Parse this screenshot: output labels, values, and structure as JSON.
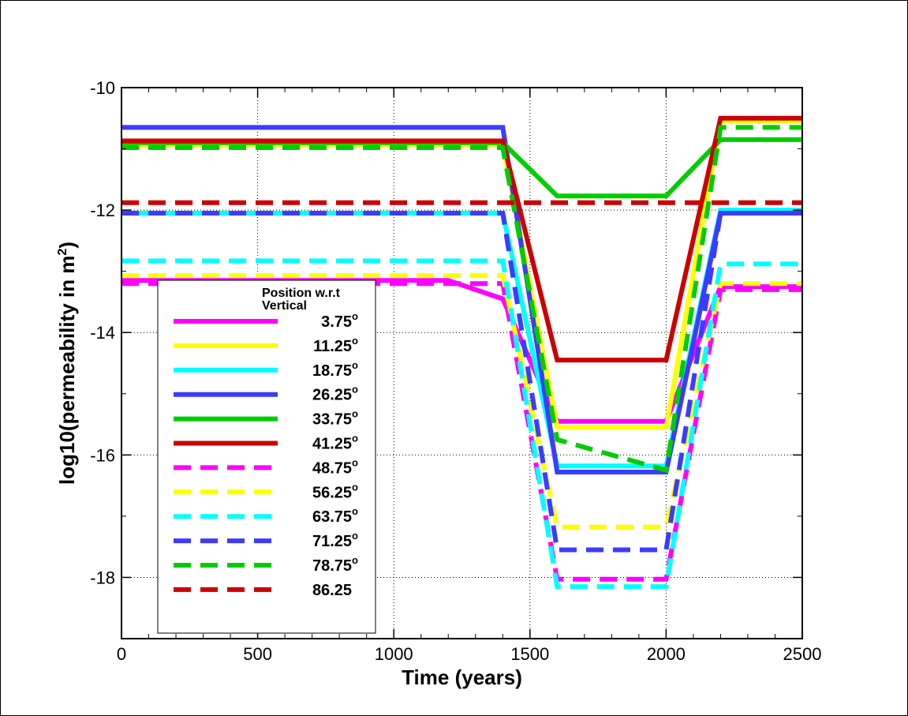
{
  "chart_data": {
    "type": "line",
    "xlabel": "Time (years)",
    "ylabel_main": "log10(permeability in m",
    "ylabel_sup": "2",
    "ylabel_close": ")",
    "xlim": [
      0,
      2500
    ],
    "ylim": [
      -19,
      -10
    ],
    "xticks": [
      0,
      500,
      1000,
      1500,
      2000,
      2500
    ],
    "xtick_labels": [
      "0",
      "500",
      "1000",
      "1500",
      "2000",
      "2500"
    ],
    "yticks": [
      -10,
      -12,
      -14,
      -16,
      -18
    ],
    "ytick_labels": [
      "-10",
      "-12",
      "-14",
      "-16",
      "-18"
    ],
    "grid": true,
    "legend": {
      "title_line1": "Position w.r.t",
      "title_line2": "Vertical",
      "placement": "lower-left"
    },
    "series": [
      {
        "name": "3.75",
        "degree": "o",
        "color": "#ff00ff",
        "style": "solid",
        "x": [
          0,
          1200,
          1400,
          1600,
          2000,
          2200,
          2500
        ],
        "y": [
          -13.15,
          -13.15,
          -13.45,
          -15.45,
          -15.45,
          -13.25,
          -13.25
        ]
      },
      {
        "name": "11.25",
        "degree": "o",
        "color": "#ffff00",
        "style": "solid",
        "x": [
          0,
          1400,
          1600,
          2000,
          2200,
          2500
        ],
        "y": [
          -10.93,
          -10.93,
          -15.55,
          -15.55,
          -10.55,
          -10.55
        ]
      },
      {
        "name": "18.75",
        "degree": "o",
        "color": "#00ffff",
        "style": "solid",
        "x": [
          0,
          1400,
          1600,
          2000,
          2200,
          2500
        ],
        "y": [
          -12.05,
          -12.05,
          -16.18,
          -16.18,
          -12.0,
          -12.0
        ]
      },
      {
        "name": "26.25",
        "degree": "o",
        "color": "#3c3cff",
        "style": "solid",
        "x": [
          0,
          1400,
          1600,
          2000,
          2200,
          2500
        ],
        "y": [
          -10.65,
          -10.65,
          -16.28,
          -16.28,
          -12.05,
          -12.05
        ]
      },
      {
        "name": "33.75",
        "degree": "o",
        "color": "#00cc00",
        "style": "solid",
        "x": [
          0,
          1400,
          1600,
          2000,
          2200,
          2500
        ],
        "y": [
          -10.9,
          -10.9,
          -11.77,
          -11.77,
          -10.85,
          -10.85
        ]
      },
      {
        "name": "41.25",
        "degree": "o",
        "color": "#cc0000",
        "style": "solid",
        "x": [
          0,
          1400,
          1600,
          2000,
          2200,
          2500
        ],
        "y": [
          -10.87,
          -10.87,
          -14.45,
          -14.45,
          -10.5,
          -10.5
        ]
      },
      {
        "name": "48.75",
        "degree": "o",
        "color": "#ff00ff",
        "style": "dashed",
        "x": [
          0,
          1400,
          1600,
          2000,
          2200,
          2500
        ],
        "y": [
          -13.2,
          -13.2,
          -18.03,
          -18.03,
          -13.3,
          -13.3
        ]
      },
      {
        "name": "56.25",
        "degree": "o",
        "color": "#ffff00",
        "style": "dashed",
        "x": [
          0,
          1400,
          1600,
          2000,
          2200,
          2500
        ],
        "y": [
          -13.07,
          -13.07,
          -17.18,
          -17.18,
          -13.2,
          -13.2
        ]
      },
      {
        "name": "63.75",
        "degree": "o",
        "color": "#00ffff",
        "style": "dashed",
        "x": [
          0,
          1400,
          1600,
          2000,
          2200,
          2500
        ],
        "y": [
          -12.83,
          -12.83,
          -18.15,
          -18.15,
          -12.88,
          -12.88
        ]
      },
      {
        "name": "71.25",
        "degree": "o",
        "color": "#3c3cff",
        "style": "dashed",
        "x": [
          0,
          1400,
          1600,
          2000,
          2200,
          2500
        ],
        "y": [
          -12.05,
          -12.05,
          -17.55,
          -17.55,
          -12.05,
          -12.05
        ]
      },
      {
        "name": "78.75",
        "degree": "o",
        "color": "#00cc00",
        "style": "dashed",
        "x": [
          0,
          1400,
          1600,
          2000,
          2200,
          2500
        ],
        "y": [
          -10.98,
          -10.98,
          -15.75,
          -16.25,
          -10.65,
          -10.65
        ]
      },
      {
        "name": "86.25",
        "degree": "",
        "color": "#cc0000",
        "style": "dashed",
        "x": [
          0,
          2500
        ],
        "y": [
          -11.88,
          -11.88
        ]
      }
    ]
  }
}
